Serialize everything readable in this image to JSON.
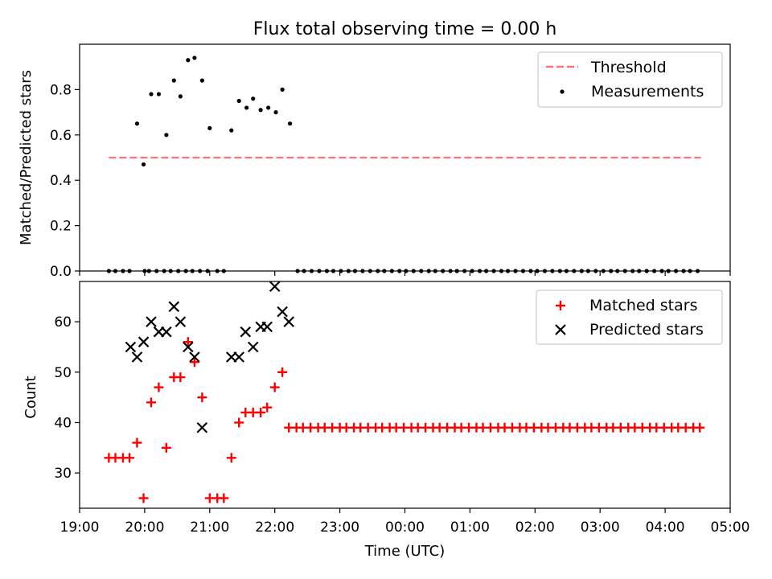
{
  "title": "Flux total observing time = 0.00 h",
  "chart_data": [
    {
      "type": "scatter",
      "ylabel": "Matched/Predicted stars",
      "xlabel": "",
      "ylim": [
        0,
        1.0
      ],
      "yticks": [
        0.0,
        0.2,
        0.4,
        0.6,
        0.8
      ],
      "ytick_labels": [
        "0.0",
        "0.2",
        "0.4",
        "0.6",
        "0.8"
      ],
      "xlim": [
        "19:00",
        "05:00"
      ],
      "legend_position": "upper right",
      "legend": [
        {
          "label": "Threshold",
          "style": "dashed line",
          "color": "#ff7373"
        },
        {
          "label": "Measurements",
          "style": "dot",
          "color": "#000000"
        }
      ],
      "threshold": {
        "y": 0.5,
        "x_start": "19:27",
        "x_end": "04:33"
      },
      "series": [
        {
          "name": "Measurements",
          "marker": "dot",
          "color": "#000000",
          "x": [
            "19:27",
            "19:33",
            "19:40",
            "19:46",
            "19:53",
            "19:59",
            "20:06",
            "20:13",
            "20:20",
            "20:27",
            "20:33",
            "20:40",
            "20:46",
            "20:53",
            "21:00",
            "21:07",
            "21:13",
            "21:20",
            "21:27",
            "21:34",
            "21:40",
            "21:47",
            "21:54",
            "22:01",
            "22:07",
            "22:14",
            "22:21",
            "22:27",
            "22:34",
            "22:41",
            "22:48",
            "22:54",
            "23:01",
            "23:08",
            "23:14",
            "23:21",
            "23:28",
            "23:35",
            "23:41",
            "23:48",
            "23:55",
            "00:01",
            "00:08",
            "00:15",
            "00:22",
            "00:28",
            "00:35",
            "00:42",
            "00:48",
            "00:55",
            "01:02",
            "01:09",
            "01:15",
            "01:22",
            "01:29",
            "01:35",
            "01:42",
            "01:49",
            "01:56",
            "02:02",
            "02:09",
            "02:16",
            "02:23",
            "02:29",
            "02:36",
            "02:43",
            "02:49",
            "02:56",
            "03:03",
            "03:10",
            "03:16",
            "03:23",
            "03:30",
            "03:36",
            "03:43",
            "03:50",
            "03:57",
            "04:03",
            "04:10",
            "04:17",
            "04:23",
            "04:30",
            "20:00",
            "20:04",
            "20:11",
            "20:18",
            "20:24",
            "20:31",
            "20:38",
            "20:44",
            "20:51",
            "20:58"
          ],
          "y": [
            0,
            0,
            0,
            0,
            0.65,
            0.47,
            0.78,
            0.78,
            0.6,
            0.84,
            0.77,
            0.93,
            0.94,
            0.84,
            0.63,
            0,
            0,
            0.62,
            0.75,
            0.72,
            0.76,
            0.71,
            0.72,
            0.7,
            0.8,
            0.65,
            0,
            0,
            0,
            0,
            0,
            0,
            0,
            0,
            0,
            0,
            0,
            0,
            0,
            0,
            0,
            0,
            0,
            0,
            0,
            0,
            0,
            0,
            0,
            0,
            0,
            0,
            0,
            0,
            0,
            0,
            0,
            0,
            0,
            0,
            0,
            0,
            0,
            0,
            0,
            0,
            0,
            0,
            0,
            0,
            0,
            0,
            0,
            0,
            0,
            0,
            0,
            0,
            0,
            0,
            0,
            0,
            0,
            0,
            0,
            0,
            0,
            0,
            0,
            0,
            0,
            0
          ]
        }
      ]
    },
    {
      "type": "scatter",
      "ylabel": "Count",
      "xlabel": "Time (UTC)",
      "ylim": [
        23,
        68
      ],
      "yticks": [
        30,
        40,
        50,
        60
      ],
      "ytick_labels": [
        "30",
        "40",
        "50",
        "60"
      ],
      "xlim": [
        "19:00",
        "05:00"
      ],
      "xtick_labels": [
        "19:00",
        "20:00",
        "21:00",
        "22:00",
        "23:00",
        "00:00",
        "01:00",
        "02:00",
        "03:00",
        "04:00",
        "05:00"
      ],
      "legend_position": "upper right",
      "legend": [
        {
          "label": "Matched stars",
          "style": "plus",
          "color": "#ff0000"
        },
        {
          "label": "Predicted stars",
          "style": "x",
          "color": "#000000"
        }
      ],
      "series": [
        {
          "name": "Matched stars",
          "marker": "plus",
          "color": "#ff0000",
          "x_minutes_after_1900": [
            27,
            33,
            40,
            46,
            53,
            59,
            66,
            73,
            80,
            87,
            93,
            100,
            106,
            113,
            120,
            127,
            133,
            140,
            147,
            153,
            160,
            167,
            173,
            180,
            187,
            193,
            200,
            206,
            213,
            220,
            226,
            233,
            240,
            246,
            253,
            259,
            266,
            273,
            279,
            286,
            292,
            299,
            306,
            312,
            319,
            326,
            332,
            339,
            346,
            352,
            359,
            366,
            372,
            379,
            386,
            392,
            399,
            406,
            412,
            419,
            426,
            432,
            439,
            446,
            452,
            459,
            466,
            472,
            479,
            486,
            492,
            499,
            506,
            512,
            519,
            526,
            532,
            539,
            546,
            552,
            559,
            566,
            572
          ],
          "y": [
            33,
            33,
            33,
            33,
            36,
            25,
            44,
            47,
            35,
            49,
            49,
            56,
            52,
            45,
            25,
            25,
            25,
            33,
            40,
            42,
            42,
            42,
            43,
            47,
            50,
            39,
            39,
            39,
            39,
            39,
            39,
            39,
            39,
            39,
            39,
            39,
            39,
            39,
            39,
            39,
            39,
            39,
            39,
            39,
            39,
            39,
            39,
            39,
            39,
            39,
            39,
            39,
            39,
            39,
            39,
            39,
            39,
            39,
            39,
            39,
            39,
            39,
            39,
            39,
            39,
            39,
            39,
            39,
            39,
            39,
            39,
            39,
            39,
            39,
            39,
            39,
            39,
            39,
            39,
            39,
            39,
            39,
            39
          ]
        },
        {
          "name": "Predicted stars",
          "marker": "x",
          "color": "#000000",
          "x_minutes_after_1900": [
            47,
            53,
            59,
            66,
            73,
            80,
            87,
            93,
            100,
            106,
            113,
            120,
            140,
            147,
            153,
            160,
            167,
            173,
            180,
            187,
            193
          ],
          "y": [
            55,
            53,
            56,
            60,
            58,
            58,
            63,
            60,
            55,
            53,
            39,
            null,
            53,
            53,
            58,
            55,
            59,
            59,
            67,
            62,
            60
          ]
        }
      ]
    }
  ]
}
